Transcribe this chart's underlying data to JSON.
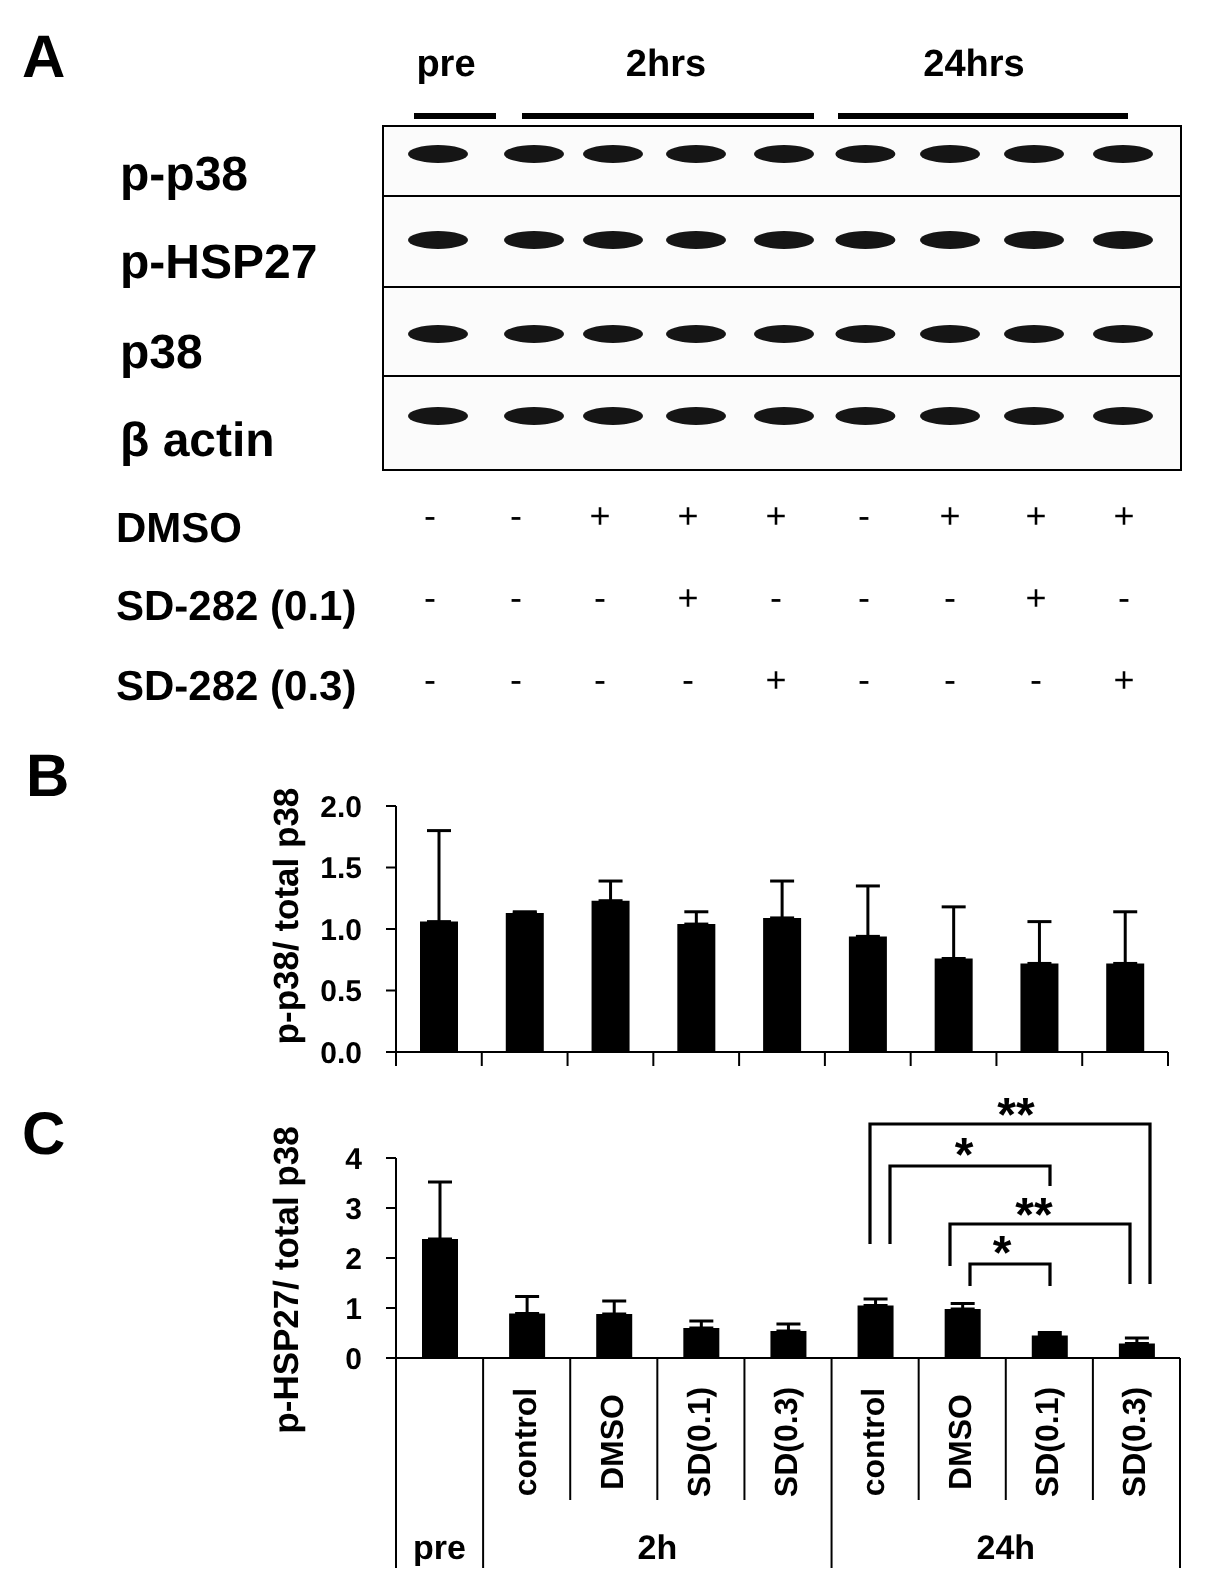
{
  "chart_data": [
    {
      "type": "other",
      "title": "A",
      "annotations": [
        "pre",
        "2hrs",
        "24hrs",
        "p-p38",
        "p-HSP27",
        "p38",
        "β actin",
        "DMSO",
        "SD-282 (0.1)",
        "SD-282 (0.3)",
        "-",
        "-",
        "+",
        "+",
        "+",
        "-",
        "+",
        "+",
        "+",
        "-",
        "-",
        "-",
        "+",
        "-",
        "-",
        "-",
        "+",
        "-",
        "-",
        "-",
        "-",
        "-",
        "+",
        "-",
        "-",
        "-",
        "+"
      ]
    },
    {
      "type": "bar",
      "title": "B",
      "ylabel": "p-p38/ total p38",
      "categories": [
        null,
        null,
        null,
        null,
        null,
        null,
        null,
        null,
        null
      ],
      "values": [
        1.06,
        1.13,
        1.23,
        1.04,
        1.09,
        0.94,
        0.76,
        0.72,
        0.72
      ],
      "errors": [
        [
          1.06,
          1.8
        ],
        [
          1.13,
          1.14
        ],
        [
          1.23,
          1.39
        ],
        [
          1.04,
          1.14
        ],
        [
          1.09,
          1.39
        ],
        [
          0.94,
          1.35
        ],
        [
          0.76,
          1.18
        ],
        [
          0.72,
          1.06
        ],
        [
          0.72,
          1.14
        ]
      ],
      "color": "#000000",
      "ylim": [
        0,
        2
      ],
      "yticks": [
        {
          "value": 0,
          "label": "0.0"
        },
        {
          "value": 0.5,
          "label": "0.5"
        },
        {
          "value": 1,
          "label": "1.0"
        },
        {
          "value": 1.5,
          "label": "1.5"
        },
        {
          "value": 2,
          "label": "2.0"
        }
      ],
      "tick_labels": "y"
    },
    {
      "type": "bar",
      "title": "C",
      "ylabel": "p-HSP27/ total p38",
      "categories": [
        null,
        "control",
        "DMSO",
        "SD(0.1)",
        "SD(0.3)",
        "control",
        "DMSO",
        "SD(0.1)",
        "SD(0.3)"
      ],
      "values": [
        2.38,
        0.89,
        0.88,
        0.6,
        0.54,
        1.05,
        0.98,
        0.45,
        0.29
      ],
      "errors": [
        [
          2.38,
          3.52
        ],
        [
          0.89,
          1.23
        ],
        [
          0.88,
          1.14
        ],
        [
          0.6,
          0.74
        ],
        [
          0.54,
          0.68
        ],
        [
          1.05,
          1.18
        ],
        [
          0.98,
          1.09
        ],
        [
          0.45,
          0.51
        ],
        [
          0.29,
          0.4
        ]
      ],
      "color": "#000000",
      "ylim": [
        0,
        4
      ],
      "yticks": [
        0,
        1,
        2,
        3,
        4
      ],
      "annotations": [
        "pre",
        "2h",
        "24h",
        "**",
        "*",
        "**",
        "*"
      ]
    }
  ]
}
